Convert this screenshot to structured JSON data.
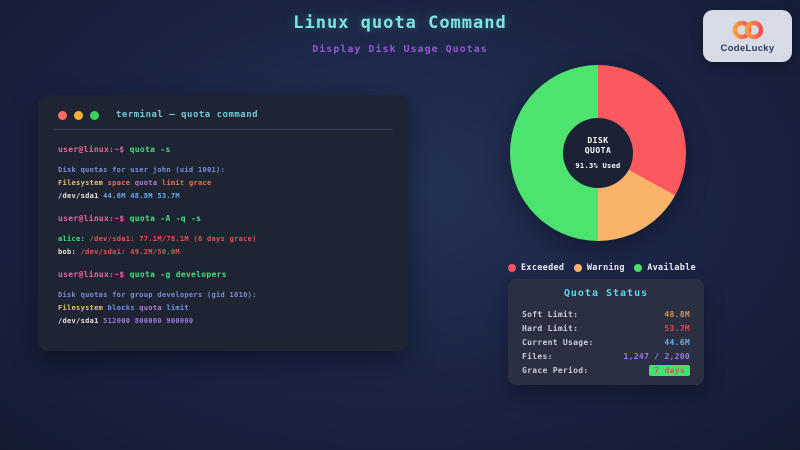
{
  "page": {
    "title": "Linux quota Command",
    "subtitle": "Display Disk Usage Quotas",
    "accent_cyan": "#7be8e0",
    "accent_purple": "#9a55d4"
  },
  "logo": {
    "brand": "CodeLucky"
  },
  "terminal": {
    "title": "terminal — quota command",
    "window_controls": [
      "close",
      "minimize",
      "maximize"
    ],
    "blocks": [
      {
        "command": [
          {
            "t": "user@linux:~$ ",
            "c": "#e8689c"
          },
          {
            "t": "quota -s",
            "c": "#45e07e"
          }
        ],
        "output": [
          [
            {
              "t": "Disk quotas for user john (uid 1001):",
              "c": "#7b8fd4"
            }
          ],
          [
            {
              "t": "Filesystem ",
              "c": "#e5c07b"
            },
            {
              "t": "space ",
              "c": "#e0764f"
            },
            {
              "t": "quota ",
              "c": "#b678dd"
            },
            {
              "t": "limit ",
              "c": "#e0764f"
            },
            {
              "t": "grace",
              "c": "#e0764f"
            }
          ],
          [
            {
              "t": "/dev/sda1 ",
              "c": "#e9e5da"
            },
            {
              "t": "44.6M 48.8M 53.7M",
              "c": "#61afef"
            }
          ]
        ]
      },
      {
        "command": [
          {
            "t": "user@linux:~$ ",
            "c": "#e8689c"
          },
          {
            "t": "quota -A -q -s",
            "c": "#45e07e"
          }
        ],
        "output": [
          [
            {
              "t": "alice: ",
              "c": "#45e07e"
            },
            {
              "t": "/dev/sda1: 77.1M/78.1M (6 days grace)",
              "c": "#e25555"
            }
          ],
          [
            {
              "t": "bob: ",
              "c": "#e9e5da"
            },
            {
              "t": "/dev/sda1: 49.2M/50.0M",
              "c": "#e25555"
            }
          ]
        ]
      },
      {
        "command": [
          {
            "t": "user@linux:~$ ",
            "c": "#e8689c"
          },
          {
            "t": "quota -g developers",
            "c": "#45e07e"
          }
        ],
        "output": [
          [
            {
              "t": "Disk quotas for group developers (gid 1010):",
              "c": "#7b8fd4"
            }
          ],
          [
            {
              "t": "Filesystem ",
              "c": "#e5c07b"
            },
            {
              "t": "blocks ",
              "c": "#6d9ae8"
            },
            {
              "t": "quota ",
              "c": "#b678dd"
            },
            {
              "t": "limit",
              "c": "#6d9ae8"
            }
          ],
          [
            {
              "t": "/dev/sda1 ",
              "c": "#e9e5da"
            },
            {
              "t": "512000 800000 900000",
              "c": "#9d7ce0"
            }
          ]
        ]
      }
    ]
  },
  "chart_data": {
    "type": "pie",
    "title": "DISK QUOTA",
    "center_title_lines": [
      "DISK",
      "QUOTA"
    ],
    "center_sub": "91.3% Used",
    "donut_hole_color": "#1c2236",
    "legend_position": "bottom",
    "slices": [
      {
        "label": "Exceeded",
        "value": 33,
        "color": "#fa5a5f"
      },
      {
        "label": "Warning",
        "value": 17,
        "color": "#f9b36a"
      },
      {
        "label": "Available",
        "value": 50,
        "color": "#4ce36e"
      }
    ]
  },
  "status_panel": {
    "title": "Quota Status",
    "rows": [
      {
        "label": "Soft Limit:",
        "value": "48.8M",
        "color": "#e0914f"
      },
      {
        "label": "Hard Limit:",
        "value": "53.7M",
        "color": "#e04b4b"
      },
      {
        "label": "Current Usage:",
        "value": "44.6M",
        "color": "#61afef"
      },
      {
        "label": "Files:",
        "value": "1,247 / 2,200",
        "color": "#9d7ce0"
      },
      {
        "label": "Grace Period:",
        "value": "7 days",
        "color": "#d95757",
        "badge": true,
        "badge_bg": "#42e070"
      }
    ]
  }
}
